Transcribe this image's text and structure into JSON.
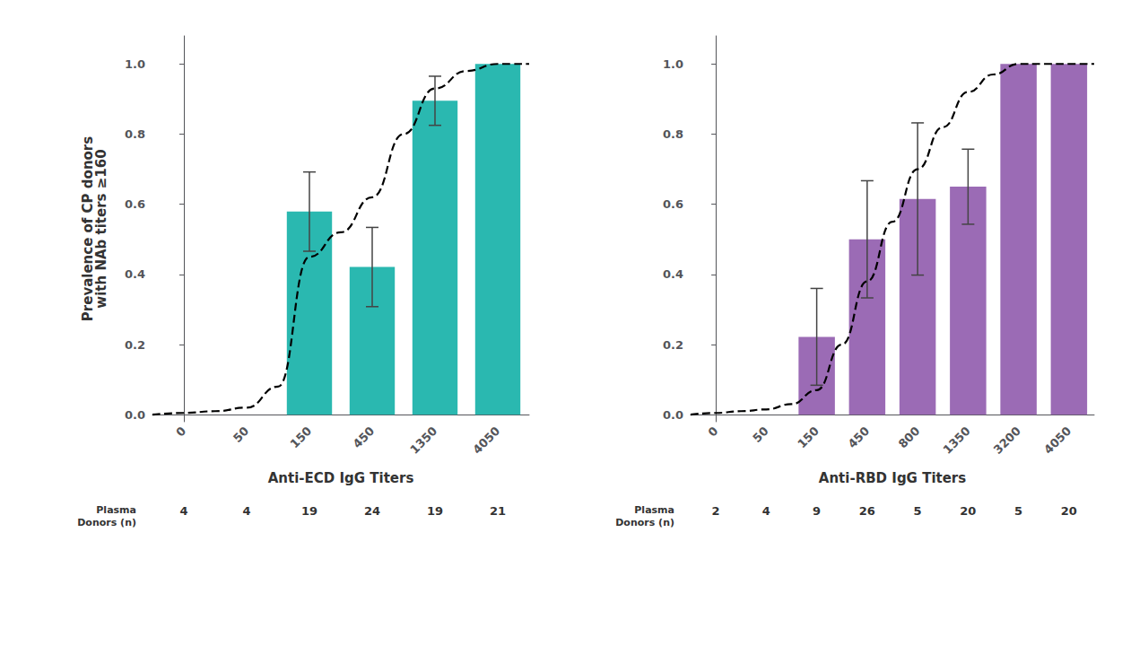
{
  "chart_data": [
    {
      "type": "bar",
      "x_label": "Anti-ECD IgG Titers",
      "y_label": "Prevalence of CP donors\nwith NAb titers ≥160",
      "categories": [
        "0",
        "50",
        "150",
        "450",
        "1350",
        "4050"
      ],
      "ylim": [
        -0.02,
        1.08
      ],
      "yticks": [
        {
          "value": 0.0,
          "label": "0.0"
        },
        {
          "value": 0.2,
          "label": "0.2"
        },
        {
          "value": 0.4,
          "label": "0.4"
        },
        {
          "value": 0.6,
          "label": "0.6"
        },
        {
          "value": 0.8,
          "label": "0.8"
        },
        {
          "value": 1.0,
          "label": "1.0"
        }
      ],
      "grid": false,
      "series": [
        {
          "type": "bar",
          "color": "#2AB8B0",
          "values": [
            null,
            null,
            0.579,
            0.421,
            0.895,
            1.0
          ],
          "errors": [
            null,
            null,
            0.113,
            0.113,
            0.07,
            0.0
          ]
        },
        {
          "type": "line",
          "color": "#000000",
          "line_style": "dashed",
          "x": [
            -0.5,
            0.0,
            0.5,
            1.0,
            1.5,
            2.0,
            2.5,
            3.0,
            3.5,
            4.0,
            4.5,
            5.0,
            5.5
          ],
          "values": [
            0.0,
            0.005,
            0.01,
            0.02,
            0.08,
            0.45,
            0.52,
            0.62,
            0.8,
            0.93,
            0.98,
            1.0,
            1.0
          ]
        }
      ],
      "donors_label": "Plasma\nDonors (n)",
      "donor_counts": [
        4,
        4,
        19,
        24,
        19,
        21
      ]
    },
    {
      "type": "bar",
      "x_label": "Anti-RBD IgG Titers",
      "categories": [
        "0",
        "50",
        "150",
        "450",
        "800",
        "1350",
        "3200",
        "4050"
      ],
      "ylim": [
        -0.02,
        1.08
      ],
      "yticks": [
        {
          "value": 0.0,
          "label": "0.0"
        },
        {
          "value": 0.2,
          "label": "0.2"
        },
        {
          "value": 0.4,
          "label": "0.4"
        },
        {
          "value": 0.6,
          "label": "0.6"
        },
        {
          "value": 0.8,
          "label": "0.8"
        },
        {
          "value": 1.0,
          "label": "1.0"
        }
      ],
      "grid": false,
      "series": [
        {
          "type": "bar",
          "color": "#9B6BB5",
          "values": [
            null,
            null,
            0.222,
            0.5,
            0.615,
            0.65,
            1.0,
            1.0
          ],
          "errors": [
            null,
            null,
            0.138,
            0.167,
            0.217,
            0.107,
            0.0,
            0.0
          ]
        },
        {
          "type": "line",
          "color": "#000000",
          "line_style": "dashed",
          "x": [
            -0.5,
            0.0,
            0.5,
            1.0,
            1.5,
            2.0,
            2.5,
            3.0,
            3.5,
            4.0,
            4.5,
            5.0,
            5.5,
            6.0,
            6.5,
            7.0,
            7.5
          ],
          "values": [
            0.0,
            0.005,
            0.01,
            0.015,
            0.03,
            0.07,
            0.2,
            0.38,
            0.55,
            0.7,
            0.82,
            0.92,
            0.97,
            1.0,
            1.0,
            1.0,
            1.0
          ]
        }
      ],
      "donors_label": "Plasma\nDonors (n)",
      "donor_counts": [
        2,
        4,
        9,
        26,
        5,
        20,
        5,
        20
      ]
    }
  ]
}
